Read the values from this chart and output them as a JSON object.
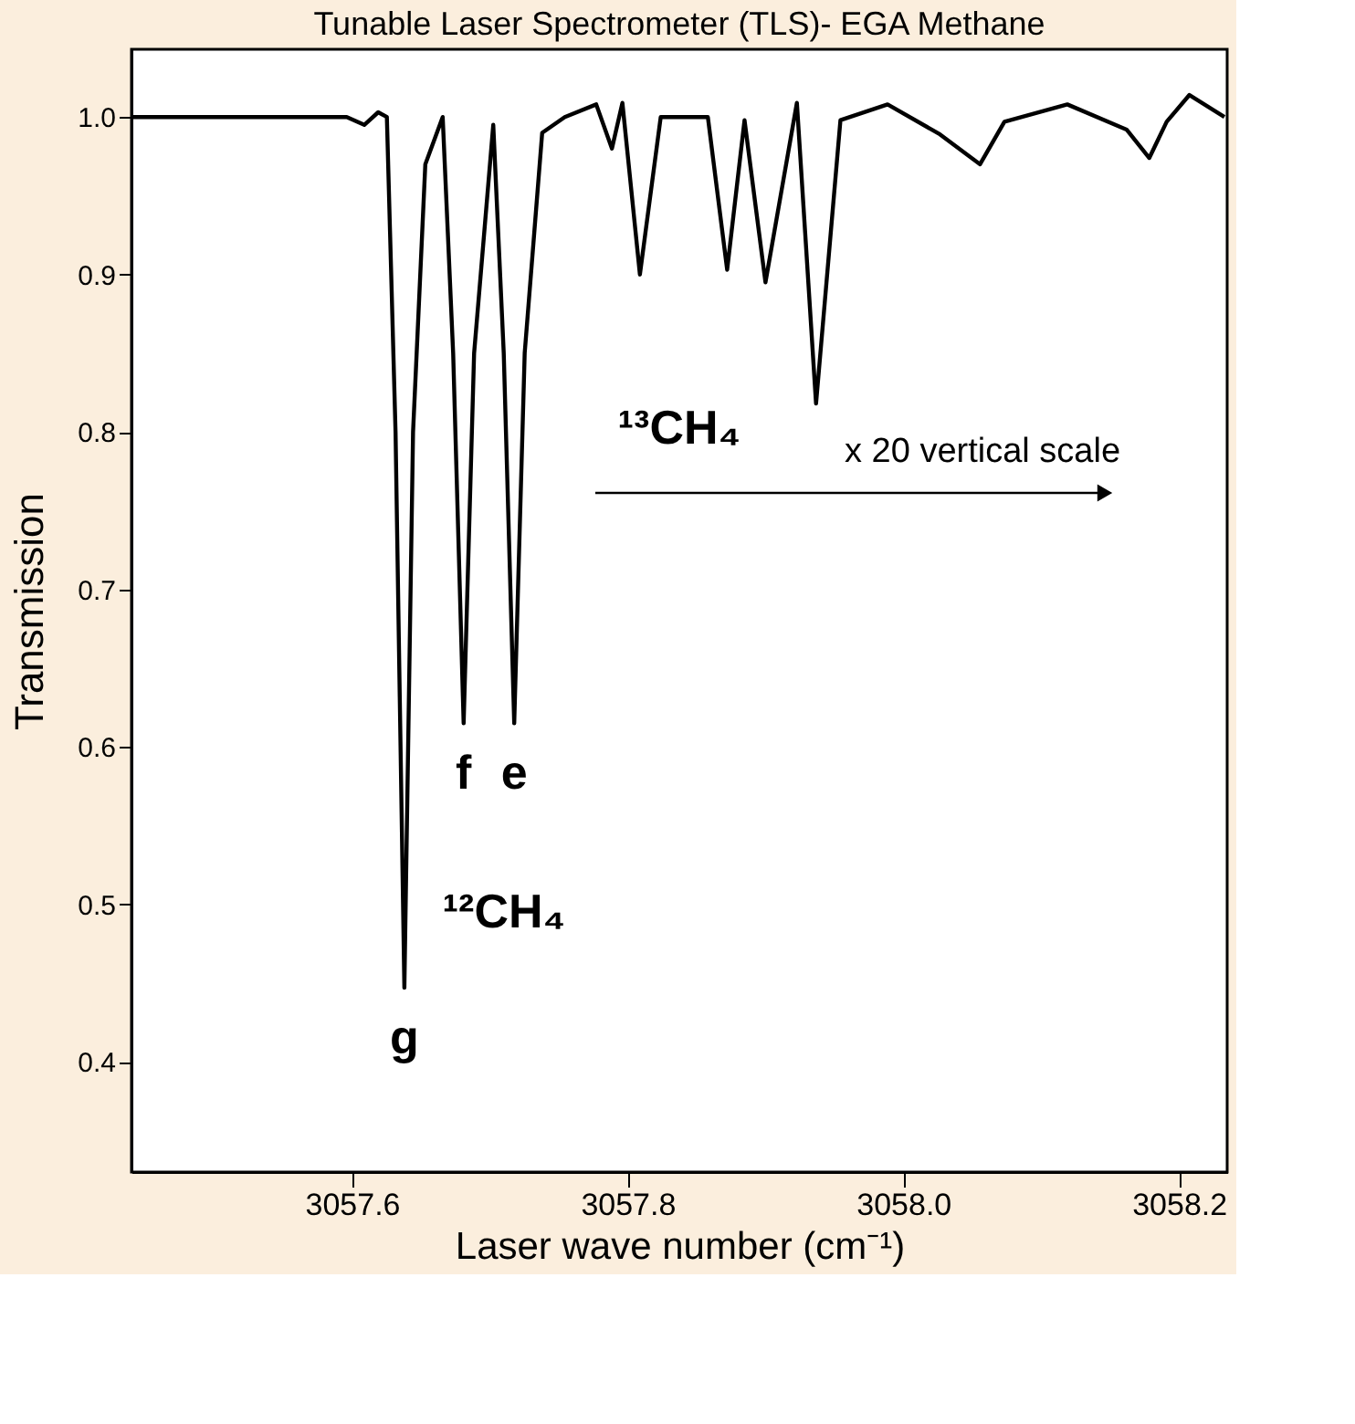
{
  "chart_data": {
    "type": "line",
    "title": "Tunable Laser Spectrometer (TLS)- EGA Methane",
    "xlabel": "Laser wave number (cm⁻¹)",
    "ylabel": "Transmission",
    "x": [
      3057.4405,
      3057.5962,
      3057.6089,
      3057.619,
      3057.6253,
      3057.6316,
      3057.638,
      3057.6443,
      3057.6532,
      3057.6658,
      3057.6734,
      3057.681,
      3057.6886,
      3057.7025,
      3057.7101,
      3057.7177,
      3057.7253,
      3057.738,
      3057.7544,
      3057.7772,
      3057.7886,
      3057.7962,
      3057.8089,
      3057.824,
      3057.8582,
      3057.8722,
      3057.8848,
      3057.9,
      3057.9228,
      3057.9367,
      3057.9544,
      3057.9886,
      3058.0266,
      3058.0557,
      3058.0734,
      3058.119,
      3058.162,
      3058.1785,
      3058.1911,
      3058.2076,
      3058.233
    ],
    "series": [
      {
        "color": "#000000",
        "values": [
          1.0,
          1.0,
          0.995,
          1.003,
          1.0,
          0.8,
          0.447,
          0.8,
          0.97,
          1.0,
          0.85,
          0.615,
          0.85,
          0.995,
          0.85,
          0.615,
          0.85,
          0.99,
          1.0,
          1.008,
          0.98,
          1.009,
          0.9,
          1.0,
          1.0,
          0.903,
          0.998,
          0.895,
          1.009,
          0.818,
          0.998,
          1.008,
          0.989,
          0.97,
          0.997,
          1.008,
          0.992,
          0.974,
          0.997,
          1.014,
          1.0
        ]
      }
    ],
    "xlim": [
      3057.44,
      3058.235
    ],
    "xticks": [
      3057.6,
      3057.8,
      {
        "value": 3058.0,
        "label": "3058.0"
      },
      3058.2
    ],
    "ylim": [
      0.33,
      1.043
    ],
    "yticks": [
      0.4,
      0.5,
      0.6,
      0.7,
      0.8,
      0.9,
      {
        "value": 1.0,
        "label": "1.0"
      }
    ],
    "grid": false,
    "marker": "none",
    "line_style": "solid",
    "annotations": [
      {
        "text": "g",
        "x": 3057.638,
        "y": 0.447
      },
      {
        "text": "f",
        "x": 3057.681,
        "y": 0.615
      },
      {
        "text": "e",
        "x": 3057.7177,
        "y": 0.615
      },
      "¹²CH₄",
      "¹³CH₄",
      "x 20 vertical scale"
    ]
  }
}
